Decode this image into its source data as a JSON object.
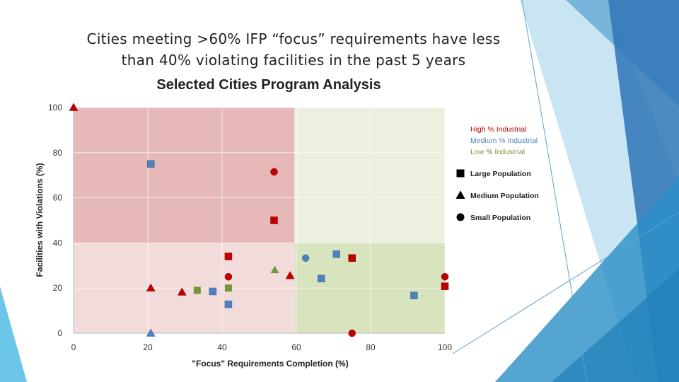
{
  "slide": {
    "title_line1": "Cities meeting >60% IFP “focus” requirements have less",
    "title_line2": "than 40% violating facilities in the past 5 years"
  },
  "colors": {
    "high": "#c00000",
    "medium": "#4f81bd",
    "low": "#77933c",
    "region_top_left": "#e6b9b8",
    "region_top_right": "#ebf1de",
    "region_bottom_left": "#f2dcdb",
    "region_bottom_right": "#d7e4bd",
    "deco_blue_1": "#2e75b6",
    "deco_blue_2": "#5ba3d0",
    "deco_blue_3": "#9dc3e6"
  },
  "chart_data": {
    "type": "scatter",
    "title": "Selected Cities Program Analysis",
    "xlabel": "\"Focus\" Requirements Completion (%)",
    "ylabel": "Facilities with Violations (%)",
    "xlim": [
      0,
      100
    ],
    "ylim": [
      0,
      100
    ],
    "xticks": [
      "0",
      "20",
      "40",
      "60",
      "80",
      "100"
    ],
    "yticks": [
      "0",
      "20",
      "40",
      "60",
      "80",
      "100"
    ],
    "regions": [
      {
        "name": "top-left",
        "x": [
          0,
          59.5
        ],
        "y": [
          40,
          100
        ],
        "color_key": "region_top_left"
      },
      {
        "name": "top-right",
        "x": [
          59.5,
          100
        ],
        "y": [
          40,
          100
        ],
        "color_key": "region_top_right"
      },
      {
        "name": "bottom-left",
        "x": [
          0,
          59.5
        ],
        "y": [
          0,
          40
        ],
        "color_key": "region_bottom_left"
      },
      {
        "name": "bottom-right",
        "x": [
          59.5,
          100
        ],
        "y": [
          0,
          40
        ],
        "color_key": "region_bottom_right"
      }
    ],
    "legend": {
      "position": "right",
      "colors": [
        {
          "label": "High % Industrial",
          "key": "high"
        },
        {
          "label": "Medium % Industrial",
          "key": "medium"
        },
        {
          "label": "Low % Industrial",
          "key": "low"
        }
      ],
      "shapes": [
        {
          "label": "Large Population",
          "shape": "square"
        },
        {
          "label": "Medium Population",
          "shape": "triangle"
        },
        {
          "label": "Small Population",
          "shape": "circle"
        }
      ]
    },
    "points": [
      {
        "x": 0,
        "y": 100,
        "industry": "high",
        "population": "triangle"
      },
      {
        "x": 20.8,
        "y": 75,
        "industry": "medium",
        "population": "square"
      },
      {
        "x": 54,
        "y": 71.5,
        "industry": "high",
        "population": "circle"
      },
      {
        "x": 54,
        "y": 50,
        "industry": "high",
        "population": "square"
      },
      {
        "x": 41.7,
        "y": 34,
        "industry": "high",
        "population": "square"
      },
      {
        "x": 62.5,
        "y": 33.3,
        "industry": "medium",
        "population": "circle"
      },
      {
        "x": 70.8,
        "y": 35,
        "industry": "medium",
        "population": "square"
      },
      {
        "x": 75,
        "y": 33.3,
        "industry": "high",
        "population": "square"
      },
      {
        "x": 41.7,
        "y": 25,
        "industry": "high",
        "population": "circle"
      },
      {
        "x": 54.2,
        "y": 28,
        "industry": "low",
        "population": "triangle"
      },
      {
        "x": 58.3,
        "y": 25.5,
        "industry": "high",
        "population": "triangle"
      },
      {
        "x": 66.7,
        "y": 24.2,
        "industry": "medium",
        "population": "square"
      },
      {
        "x": 100,
        "y": 25,
        "industry": "high",
        "population": "circle"
      },
      {
        "x": 100,
        "y": 20.8,
        "industry": "high",
        "population": "square"
      },
      {
        "x": 20.8,
        "y": 20,
        "industry": "high",
        "population": "triangle"
      },
      {
        "x": 29.2,
        "y": 18.2,
        "industry": "high",
        "population": "triangle"
      },
      {
        "x": 33.3,
        "y": 19,
        "industry": "low",
        "population": "square"
      },
      {
        "x": 37.5,
        "y": 18.5,
        "industry": "medium",
        "population": "square"
      },
      {
        "x": 41.7,
        "y": 20,
        "industry": "low",
        "population": "square"
      },
      {
        "x": 41.7,
        "y": 12.8,
        "industry": "medium",
        "population": "square"
      },
      {
        "x": 91.7,
        "y": 16.7,
        "industry": "medium",
        "population": "square"
      },
      {
        "x": 20.8,
        "y": 0,
        "industry": "medium",
        "population": "triangle"
      },
      {
        "x": 75,
        "y": 0,
        "industry": "high",
        "population": "circle"
      }
    ]
  }
}
